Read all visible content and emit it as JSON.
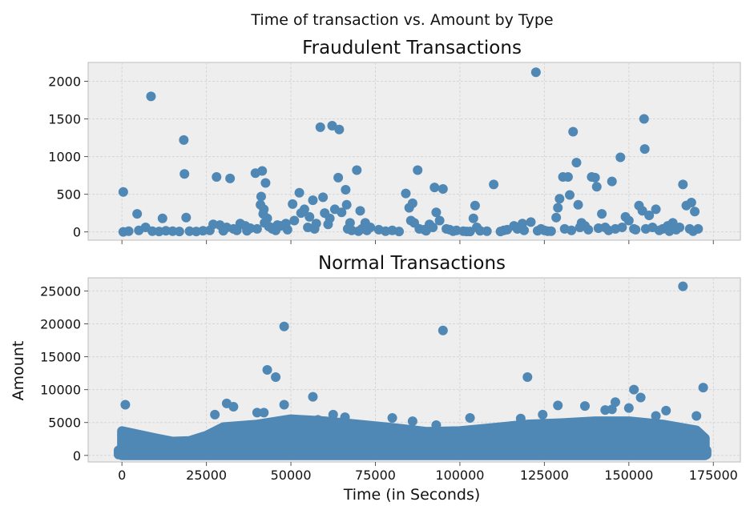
{
  "figure_title": "Time of transaction vs. Amount by Type",
  "colors": {
    "marker": "#4f87b5",
    "plot_bg": "#eeeeee",
    "grid": "#d6d6d6",
    "frame": "#bcbcbc"
  },
  "chart_data": [
    {
      "type": "scatter",
      "title": "Fraudulent Transactions",
      "xlabel": "",
      "ylabel": "",
      "xlim": [
        -10000,
        183000
      ],
      "ylim": [
        -110,
        2250
      ],
      "x_ticks": [
        0,
        25000,
        50000,
        75000,
        100000,
        125000,
        150000,
        175000
      ],
      "x_tick_labels_shown": false,
      "y_ticks": [
        0,
        500,
        1000,
        1500,
        2000
      ],
      "y_tick_labels": [
        "0",
        "500",
        "1000",
        "1500",
        "2000"
      ],
      "grid": true,
      "points": [
        [
          400,
          530
        ],
        [
          400,
          0
        ],
        [
          4500,
          240
        ],
        [
          8600,
          1800
        ],
        [
          18300,
          1220
        ],
        [
          18500,
          770
        ],
        [
          12000,
          180
        ],
        [
          19000,
          190
        ],
        [
          7000,
          60
        ],
        [
          9000,
          10
        ],
        [
          11000,
          5
        ],
        [
          13000,
          15
        ],
        [
          15000,
          10
        ],
        [
          17000,
          5
        ],
        [
          20000,
          10
        ],
        [
          22000,
          5
        ],
        [
          28000,
          730
        ],
        [
          32000,
          710
        ],
        [
          27000,
          100
        ],
        [
          29000,
          90
        ],
        [
          31000,
          60
        ],
        [
          33000,
          40
        ],
        [
          35000,
          110
        ],
        [
          36500,
          80
        ],
        [
          38000,
          50
        ],
        [
          39500,
          780
        ],
        [
          41500,
          810
        ],
        [
          42500,
          650
        ],
        [
          41200,
          470
        ],
        [
          41000,
          360
        ],
        [
          42000,
          300
        ],
        [
          41800,
          240
        ],
        [
          43000,
          180
        ],
        [
          42200,
          120
        ],
        [
          43500,
          70
        ],
        [
          44500,
          40
        ],
        [
          45500,
          20
        ],
        [
          47000,
          80
        ],
        [
          48500,
          110
        ],
        [
          50500,
          370
        ],
        [
          52500,
          520
        ],
        [
          54000,
          300
        ],
        [
          55500,
          200
        ],
        [
          56500,
          420
        ],
        [
          57500,
          110
        ],
        [
          58700,
          1390
        ],
        [
          59500,
          460
        ],
        [
          61000,
          100
        ],
        [
          62200,
          1410
        ],
        [
          64300,
          1360
        ],
        [
          64000,
          720
        ],
        [
          66200,
          560
        ],
        [
          66500,
          360
        ],
        [
          67500,
          120
        ],
        [
          69500,
          820
        ],
        [
          70500,
          280
        ],
        [
          72000,
          120
        ],
        [
          73500,
          60
        ],
        [
          84000,
          510
        ],
        [
          85000,
          320
        ],
        [
          85500,
          150
        ],
        [
          86000,
          380
        ],
        [
          86500,
          120
        ],
        [
          87500,
          820
        ],
        [
          89500,
          30
        ],
        [
          92000,
          60
        ],
        [
          92500,
          590
        ],
        [
          95000,
          570
        ],
        [
          93000,
          260
        ],
        [
          94000,
          150
        ],
        [
          96000,
          40
        ],
        [
          98000,
          10
        ],
        [
          102000,
          5
        ],
        [
          104500,
          350
        ],
        [
          104000,
          180
        ],
        [
          105000,
          60
        ],
        [
          110000,
          630
        ],
        [
          113000,
          20
        ],
        [
          116000,
          80
        ],
        [
          118500,
          110
        ],
        [
          121000,
          130
        ],
        [
          122500,
          2120
        ],
        [
          124000,
          40
        ],
        [
          126000,
          10
        ],
        [
          128500,
          190
        ],
        [
          129000,
          320
        ],
        [
          129500,
          440
        ],
        [
          130500,
          730
        ],
        [
          132000,
          730
        ],
        [
          132500,
          490
        ],
        [
          133500,
          1330
        ],
        [
          134500,
          920
        ],
        [
          135000,
          360
        ],
        [
          136000,
          120
        ],
        [
          137000,
          80
        ],
        [
          139000,
          730
        ],
        [
          140000,
          720
        ],
        [
          140500,
          600
        ],
        [
          142000,
          240
        ],
        [
          143000,
          60
        ],
        [
          145000,
          670
        ],
        [
          147500,
          990
        ],
        [
          149000,
          200
        ],
        [
          150000,
          150
        ],
        [
          151500,
          40
        ],
        [
          153000,
          350
        ],
        [
          154000,
          280
        ],
        [
          154500,
          1500
        ],
        [
          154700,
          1100
        ],
        [
          156000,
          220
        ],
        [
          158000,
          300
        ],
        [
          160000,
          40
        ],
        [
          161500,
          80
        ],
        [
          163000,
          120
        ],
        [
          166000,
          630
        ],
        [
          167000,
          350
        ],
        [
          168500,
          390
        ],
        [
          169500,
          270
        ],
        [
          170500,
          40
        ],
        [
          2000,
          10
        ],
        [
          5000,
          20
        ],
        [
          24000,
          15
        ],
        [
          26000,
          20
        ],
        [
          30000,
          15
        ],
        [
          34000,
          20
        ],
        [
          37000,
          15
        ],
        [
          40000,
          40
        ],
        [
          44000,
          60
        ],
        [
          46000,
          90
        ],
        [
          49000,
          30
        ],
        [
          51000,
          150
        ],
        [
          53000,
          250
        ],
        [
          55000,
          60
        ],
        [
          57000,
          40
        ],
        [
          60000,
          250
        ],
        [
          61500,
          180
        ],
        [
          63000,
          300
        ],
        [
          65000,
          260
        ],
        [
          66800,
          40
        ],
        [
          68000,
          20
        ],
        [
          70000,
          10
        ],
        [
          71000,
          40
        ],
        [
          72500,
          20
        ],
        [
          76000,
          30
        ],
        [
          78000,
          10
        ],
        [
          80000,
          20
        ],
        [
          82000,
          5
        ],
        [
          88000,
          40
        ],
        [
          90000,
          15
        ],
        [
          91000,
          100
        ],
        [
          97000,
          30
        ],
        [
          99000,
          20
        ],
        [
          101000,
          10
        ],
        [
          103000,
          5
        ],
        [
          106000,
          15
        ],
        [
          108000,
          10
        ],
        [
          112000,
          5
        ],
        [
          114000,
          30
        ],
        [
          117000,
          40
        ],
        [
          119000,
          20
        ],
        [
          123000,
          15
        ],
        [
          125000,
          20
        ],
        [
          127000,
          10
        ],
        [
          131000,
          40
        ],
        [
          133000,
          20
        ],
        [
          135500,
          60
        ],
        [
          138000,
          30
        ],
        [
          141000,
          50
        ],
        [
          144000,
          20
        ],
        [
          146000,
          40
        ],
        [
          148000,
          60
        ],
        [
          152000,
          30
        ],
        [
          155000,
          40
        ],
        [
          157000,
          60
        ],
        [
          159000,
          20
        ],
        [
          162000,
          10
        ],
        [
          164000,
          30
        ],
        [
          165000,
          60
        ],
        [
          168000,
          40
        ],
        [
          169000,
          10
        ]
      ]
    },
    {
      "type": "scatter",
      "title": "Normal Transactions",
      "xlabel": "Time (in Seconds)",
      "ylabel": "Amount",
      "xlim": [
        -10000,
        183000
      ],
      "ylim": [
        -1000,
        27000
      ],
      "x_ticks": [
        0,
        25000,
        50000,
        75000,
        100000,
        125000,
        150000,
        175000
      ],
      "x_tick_labels": [
        "0",
        "25000",
        "50000",
        "75000",
        "100000",
        "125000",
        "150000",
        "175000"
      ],
      "y_ticks": [
        0,
        5000,
        10000,
        15000,
        20000,
        25000
      ],
      "y_tick_labels": [
        "0",
        "5000",
        "10000",
        "15000",
        "20000",
        "25000"
      ],
      "grid": true,
      "outliers": [
        [
          166000,
          25700
        ],
        [
          48000,
          19600
        ],
        [
          95000,
          19000
        ],
        [
          43000,
          13000
        ],
        [
          45500,
          11900
        ],
        [
          120000,
          11900
        ],
        [
          172000,
          10300
        ],
        [
          151500,
          10000
        ],
        [
          153500,
          8800
        ],
        [
          48000,
          7700
        ],
        [
          1000,
          7700
        ],
        [
          56500,
          8900
        ],
        [
          31000,
          7900
        ],
        [
          33000,
          7400
        ],
        [
          27500,
          6200
        ],
        [
          40000,
          6500
        ],
        [
          42000,
          6500
        ],
        [
          62500,
          6200
        ],
        [
          66000,
          5800
        ],
        [
          80000,
          5700
        ],
        [
          103000,
          5700
        ],
        [
          118000,
          5600
        ],
        [
          124500,
          6200
        ],
        [
          129000,
          7600
        ],
        [
          137000,
          7500
        ],
        [
          143000,
          6900
        ],
        [
          146000,
          8100
        ],
        [
          150000,
          7200
        ],
        [
          158000,
          6000
        ],
        [
          161000,
          6800
        ],
        [
          170000,
          6000
        ],
        [
          145000,
          7000
        ],
        [
          93000,
          4600
        ],
        [
          86000,
          5200
        ],
        [
          58000,
          5400
        ]
      ],
      "band_envelope": [
        [
          0,
          3700
        ],
        [
          10000,
          2600
        ],
        [
          15000,
          2100
        ],
        [
          20000,
          2200
        ],
        [
          25000,
          3000
        ],
        [
          30000,
          4300
        ],
        [
          40000,
          4700
        ],
        [
          50000,
          5500
        ],
        [
          60000,
          5200
        ],
        [
          70000,
          4700
        ],
        [
          80000,
          4200
        ],
        [
          90000,
          3600
        ],
        [
          100000,
          3700
        ],
        [
          110000,
          4200
        ],
        [
          120000,
          4700
        ],
        [
          130000,
          4900
        ],
        [
          140000,
          5200
        ],
        [
          150000,
          5200
        ],
        [
          160000,
          4700
        ],
        [
          170000,
          3800
        ],
        [
          172500,
          2600
        ]
      ]
    }
  ]
}
